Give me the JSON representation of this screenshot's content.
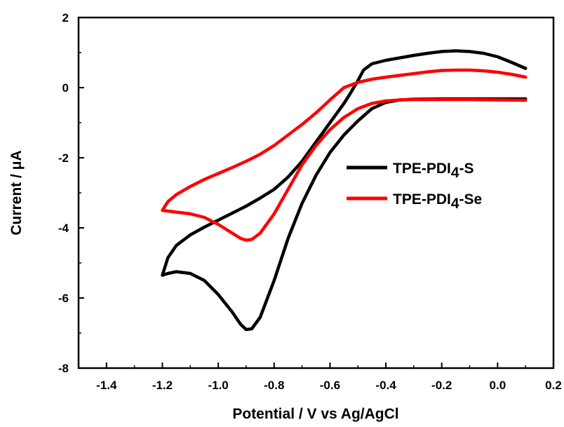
{
  "chart_data": {
    "type": "line",
    "title": "",
    "xlabel": "Potential / V vs Ag/AgCl",
    "ylabel": "Current / μA",
    "xlim": [
      -1.5,
      0.2
    ],
    "ylim": [
      -8,
      2
    ],
    "xticks": [
      -1.4,
      -1.2,
      -1.0,
      -0.8,
      -0.6,
      -0.4,
      -0.2,
      0.0,
      0.2
    ],
    "xtick_labels": [
      "-1.4",
      "-1.2",
      "-1.0",
      "-0.8",
      "-0.6",
      "-0.4",
      "-0.2",
      "0.0",
      "0.2"
    ],
    "yticks": [
      2,
      0,
      -2,
      -4,
      -6,
      -8
    ],
    "ytick_labels": [
      "2",
      "0",
      "-2",
      "-4",
      "-6",
      "-8"
    ],
    "grid": false,
    "legend_position": "center-right",
    "series": [
      {
        "name": "TPE-PDI4-S",
        "legend_main": "TPE-PDI",
        "legend_sub": "4",
        "legend_tail": "-S",
        "color": "#000000",
        "points": [
          [
            0.1,
            0.55
          ],
          [
            0.05,
            0.72
          ],
          [
            0.0,
            0.88
          ],
          [
            -0.05,
            0.98
          ],
          [
            -0.1,
            1.03
          ],
          [
            -0.15,
            1.05
          ],
          [
            -0.2,
            1.03
          ],
          [
            -0.25,
            0.98
          ],
          [
            -0.3,
            0.92
          ],
          [
            -0.35,
            0.85
          ],
          [
            -0.4,
            0.78
          ],
          [
            -0.45,
            0.68
          ],
          [
            -0.48,
            0.5
          ],
          [
            -0.5,
            0.2
          ],
          [
            -0.53,
            -0.2
          ],
          [
            -0.55,
            -0.45
          ],
          [
            -0.6,
            -1.0
          ],
          [
            -0.65,
            -1.55
          ],
          [
            -0.7,
            -2.1
          ],
          [
            -0.75,
            -2.55
          ],
          [
            -0.8,
            -2.9
          ],
          [
            -0.85,
            -3.15
          ],
          [
            -0.9,
            -3.38
          ],
          [
            -0.95,
            -3.58
          ],
          [
            -1.0,
            -3.78
          ],
          [
            -1.05,
            -3.98
          ],
          [
            -1.1,
            -4.2
          ],
          [
            -1.15,
            -4.5
          ],
          [
            -1.18,
            -4.85
          ],
          [
            -1.2,
            -5.35
          ],
          [
            -1.18,
            -5.3
          ],
          [
            -1.15,
            -5.25
          ],
          [
            -1.1,
            -5.3
          ],
          [
            -1.05,
            -5.5
          ],
          [
            -1.0,
            -5.9
          ],
          [
            -0.95,
            -6.4
          ],
          [
            -0.92,
            -6.75
          ],
          [
            -0.9,
            -6.9
          ],
          [
            -0.88,
            -6.88
          ],
          [
            -0.85,
            -6.55
          ],
          [
            -0.8,
            -5.5
          ],
          [
            -0.75,
            -4.3
          ],
          [
            -0.7,
            -3.3
          ],
          [
            -0.65,
            -2.5
          ],
          [
            -0.6,
            -1.85
          ],
          [
            -0.55,
            -1.35
          ],
          [
            -0.5,
            -0.95
          ],
          [
            -0.45,
            -0.6
          ],
          [
            -0.4,
            -0.42
          ],
          [
            -0.35,
            -0.35
          ],
          [
            -0.3,
            -0.33
          ],
          [
            -0.2,
            -0.32
          ],
          [
            -0.1,
            -0.32
          ],
          [
            0.0,
            -0.32
          ],
          [
            0.1,
            -0.32
          ]
        ]
      },
      {
        "name": "TPE-PDI4-Se",
        "legend_main": "TPE-PDI",
        "legend_sub": "4",
        "legend_tail": "-Se",
        "color": "#ff0000",
        "points": [
          [
            0.1,
            0.3
          ],
          [
            0.05,
            0.38
          ],
          [
            0.0,
            0.44
          ],
          [
            -0.05,
            0.48
          ],
          [
            -0.1,
            0.5
          ],
          [
            -0.15,
            0.5
          ],
          [
            -0.2,
            0.49
          ],
          [
            -0.25,
            0.45
          ],
          [
            -0.3,
            0.4
          ],
          [
            -0.35,
            0.35
          ],
          [
            -0.4,
            0.3
          ],
          [
            -0.45,
            0.24
          ],
          [
            -0.5,
            0.15
          ],
          [
            -0.55,
            0.0
          ],
          [
            -0.6,
            -0.35
          ],
          [
            -0.65,
            -0.72
          ],
          [
            -0.7,
            -1.05
          ],
          [
            -0.75,
            -1.35
          ],
          [
            -0.8,
            -1.65
          ],
          [
            -0.85,
            -1.9
          ],
          [
            -0.9,
            -2.1
          ],
          [
            -0.95,
            -2.28
          ],
          [
            -1.0,
            -2.45
          ],
          [
            -1.05,
            -2.62
          ],
          [
            -1.1,
            -2.82
          ],
          [
            -1.15,
            -3.05
          ],
          [
            -1.18,
            -3.25
          ],
          [
            -1.2,
            -3.5
          ],
          [
            -1.18,
            -3.52
          ],
          [
            -1.15,
            -3.55
          ],
          [
            -1.1,
            -3.6
          ],
          [
            -1.05,
            -3.7
          ],
          [
            -1.0,
            -3.9
          ],
          [
            -0.95,
            -4.15
          ],
          [
            -0.92,
            -4.3
          ],
          [
            -0.9,
            -4.35
          ],
          [
            -0.88,
            -4.33
          ],
          [
            -0.85,
            -4.15
          ],
          [
            -0.8,
            -3.6
          ],
          [
            -0.75,
            -2.9
          ],
          [
            -0.7,
            -2.2
          ],
          [
            -0.65,
            -1.65
          ],
          [
            -0.6,
            -1.2
          ],
          [
            -0.55,
            -0.85
          ],
          [
            -0.5,
            -0.6
          ],
          [
            -0.45,
            -0.45
          ],
          [
            -0.4,
            -0.38
          ],
          [
            -0.35,
            -0.35
          ],
          [
            -0.3,
            -0.34
          ],
          [
            -0.2,
            -0.34
          ],
          [
            -0.1,
            -0.34
          ],
          [
            0.0,
            -0.35
          ],
          [
            0.1,
            -0.36
          ]
        ]
      }
    ]
  }
}
